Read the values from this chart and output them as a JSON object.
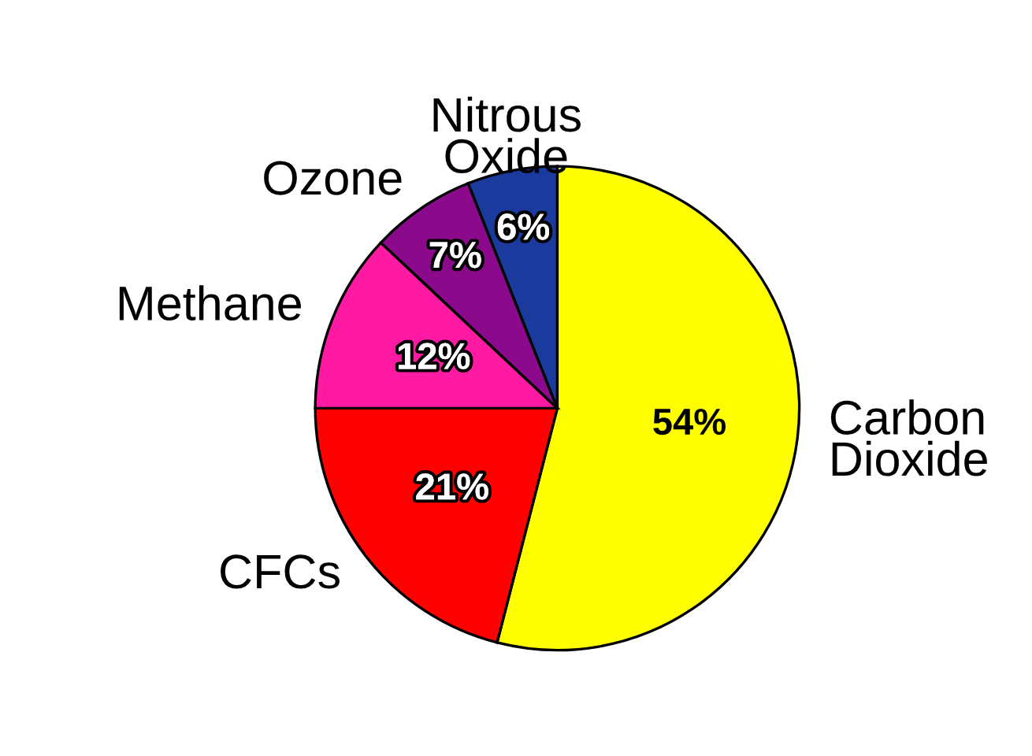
{
  "chart_data": {
    "type": "pie",
    "categories": [
      "Carbon\nDioxide",
      "CFCs",
      "Methane",
      "Ozone",
      "Nitrous\nOxide"
    ],
    "values": [
      54,
      21,
      12,
      7,
      6
    ],
    "colors": [
      "#ffff00",
      "#ff0000",
      "#ff1aa3",
      "#8b0a8b",
      "#1a3a9e"
    ],
    "value_labels": [
      "54%",
      "21%",
      "12%",
      "7%",
      "6%"
    ],
    "legend": false
  }
}
